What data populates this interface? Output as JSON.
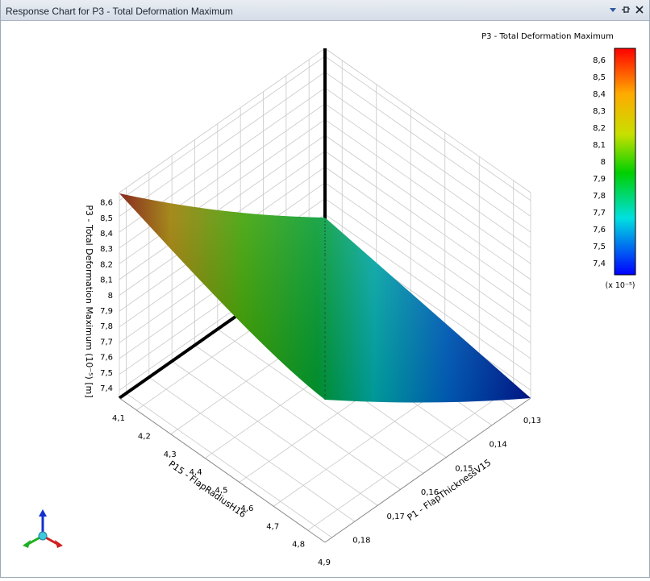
{
  "window": {
    "title": "Response Chart for P3 - Total Deformation Maximum"
  },
  "chart_data": {
    "type": "surface",
    "title": "P3 - Total Deformation Maximum",
    "z_label": "P3 - Total Deformation Maximum  (10⁻⁵)  [m]",
    "z_ticks": [
      "7,4",
      "7,5",
      "7,6",
      "7,7",
      "7,8",
      "7,9",
      "8",
      "8,1",
      "8,2",
      "8,3",
      "8,4",
      "8,5",
      "8,6"
    ],
    "z_range": [
      7.35,
      8.65
    ],
    "x_label": "P15 - FlapRadiusH16",
    "x_ticks": [
      "4,1",
      "4,2",
      "4,3",
      "4,4",
      "4,5",
      "4,6",
      "4,7",
      "4,8",
      "4,9"
    ],
    "x_range": [
      4.1,
      4.9
    ],
    "y_label": "P1 - FlapThicknessV15",
    "y_ticks": [
      "0,13",
      "0,14",
      "0,15",
      "0,16",
      "0,17",
      "0,18"
    ],
    "y_range": [
      0.13,
      0.18
    ],
    "corner_values": {
      "x4.1_y0.18": 8.62,
      "x4.1_y0.13": 8.02,
      "x4.9_y0.18": 7.84,
      "x4.9_y0.13": 7.4
    },
    "legend": {
      "title": "P3 - Total Deformation Maximum",
      "ticks": [
        "8,6",
        "8,5",
        "8,4",
        "8,3",
        "8,2",
        "8,1",
        "8",
        "7,9",
        "7,8",
        "7,7",
        "7,6",
        "7,5",
        "7,4"
      ],
      "multiplier": "(x 10⁻⁵)",
      "placement": "right"
    },
    "grid": true
  }
}
